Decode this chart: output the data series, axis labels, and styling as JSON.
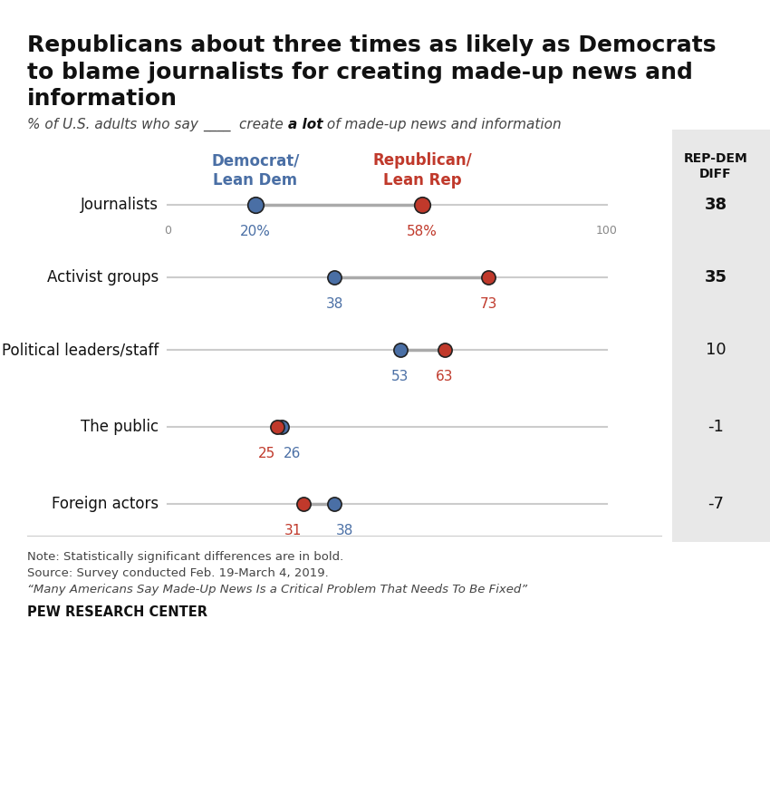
{
  "title": "Republicans about three times as likely as Democrats\nto blame journalists for creating made-up news and\ninformation",
  "categories": [
    "Journalists",
    "Activist groups",
    "Political leaders/staff",
    "The public",
    "Foreign actors"
  ],
  "dem_values": [
    20,
    38,
    53,
    26,
    38
  ],
  "rep_values": [
    58,
    73,
    63,
    25,
    31
  ],
  "rep_dem_diff": [
    38,
    35,
    10,
    -1,
    -7
  ],
  "diff_bold": [
    true,
    true,
    false,
    false,
    false
  ],
  "dem_color": "#4a6fa5",
  "rep_color": "#c0392b",
  "line_color": "#cccccc",
  "dot_outline_color": "#222222",
  "note_line1": "Note: Statistically significant differences are in bold.",
  "note_line2": "Source: Survey conducted Feb. 19-March 4, 2019.",
  "note_line3": "“Many Americans Say Made-Up News Is a Critical Problem That Needs To Be Fixed”",
  "footer": "PEW RESEARCH CENTER",
  "diff_header": "REP-DEM\nDIFF",
  "col_dem_header": "Democrat/\nLean Dem",
  "col_rep_header": "Republican/\nLean Rep",
  "background_color": "#ffffff",
  "diff_bg_color": "#e8e8e8"
}
